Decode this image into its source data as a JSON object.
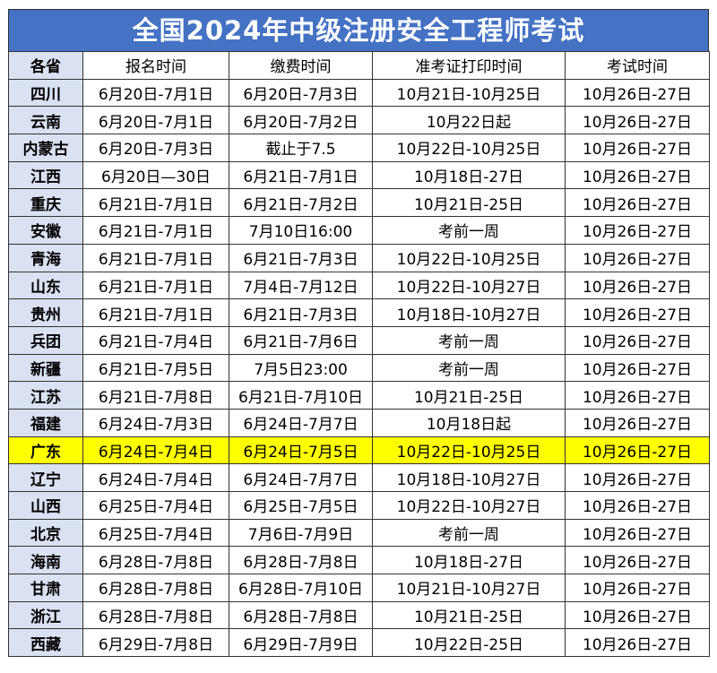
{
  "title": "全国2024年中级注册安全工程师考试",
  "highlight_color": "#ffff00",
  "header_color": "#4472c4",
  "columns": [
    "各省",
    "报名时间",
    "缴费时间",
    "准考证打印时间",
    "考试时间"
  ],
  "highlighted_row": "广东",
  "rows": [
    [
      "四川",
      "6月20日-7月1日",
      "6月20日-7月3日",
      "10月21日-10月25日",
      "10月26日-27日"
    ],
    [
      "云南",
      "6月20日-7月1日",
      "6月20日-7月2日",
      "10月22日起",
      "10月26日-27日"
    ],
    [
      "内蒙古",
      "6月20日-7月3日",
      "截止于7.5",
      "10月22日-10月25日",
      "10月26日-27日"
    ],
    [
      "江西",
      "6月20日—30日",
      "6月21日-7月1日",
      "10月18日-27日",
      "10月26日-27日"
    ],
    [
      "重庆",
      "6月21日-7月1日",
      "6月21日-7月2日",
      "10月21日-25日",
      "10月26日-27日"
    ],
    [
      "安徽",
      "6月21日-7月1日",
      "7月10日16:00",
      "考前一周",
      "10月26日-27日"
    ],
    [
      "青海",
      "6月21日-7月1日",
      "6月21日-7月3日",
      "10月22日-10月25日",
      "10月26日-27日"
    ],
    [
      "山东",
      "6月21日-7月1日",
      "7月4日-7月12日",
      "10月22日-10月27日",
      "10月26日-27日"
    ],
    [
      "贵州",
      "6月21日-7月1日",
      "6月21日-7月3日",
      "10月18日-10月27日",
      "10月26日-27日"
    ],
    [
      "兵团",
      "6月21日-7月4日",
      "6月21日-7月6日",
      "考前一周",
      "10月26日-27日"
    ],
    [
      "新疆",
      "6月21日-7月5日",
      "7月5日23:00",
      "考前一周",
      "10月26日-27日"
    ],
    [
      "江苏",
      "6月21日-7月8日",
      "6月21日-7月10日",
      "10月21日-25日",
      "10月26日-27日"
    ],
    [
      "福建",
      "6月24日-7月3日",
      "6月24日-7月7日",
      "10月18日起",
      "10月26日-27日"
    ],
    [
      "广东",
      "6月24日-7月4日",
      "6月24日-7月5日",
      "10月22日-10月25日",
      "10月26日-27日"
    ],
    [
      "辽宁",
      "6月24日-7月4日",
      "6月24日-7月7日",
      "10月18日-10月27日",
      "10月26日-27日"
    ],
    [
      "山西",
      "6月25日-7月4日",
      "6月25日-7月5日",
      "10月22日-10月27日",
      "10月26日-27日"
    ],
    [
      "北京",
      "6月25日-7月4日",
      "7月6日-7月9日",
      "考前一周",
      "10月26日-27日"
    ],
    [
      "海南",
      "6月28日-7月8日",
      "6月28日-7月8日",
      "10月18日-27日",
      "10月26日-27日"
    ],
    [
      "甘肃",
      "6月28日-7月8日",
      "6月28日-7月10日",
      "10月21日-10月27日",
      "10月26日-27日"
    ],
    [
      "浙江",
      "6月28日-7月8日",
      "6月28日-7月8日",
      "10月21日-25日",
      "10月26日-27日"
    ],
    [
      "西藏",
      "6月29日-7月8日",
      "6月29日-7月9日",
      "10月22日-25日",
      "10月26日-27日"
    ]
  ]
}
